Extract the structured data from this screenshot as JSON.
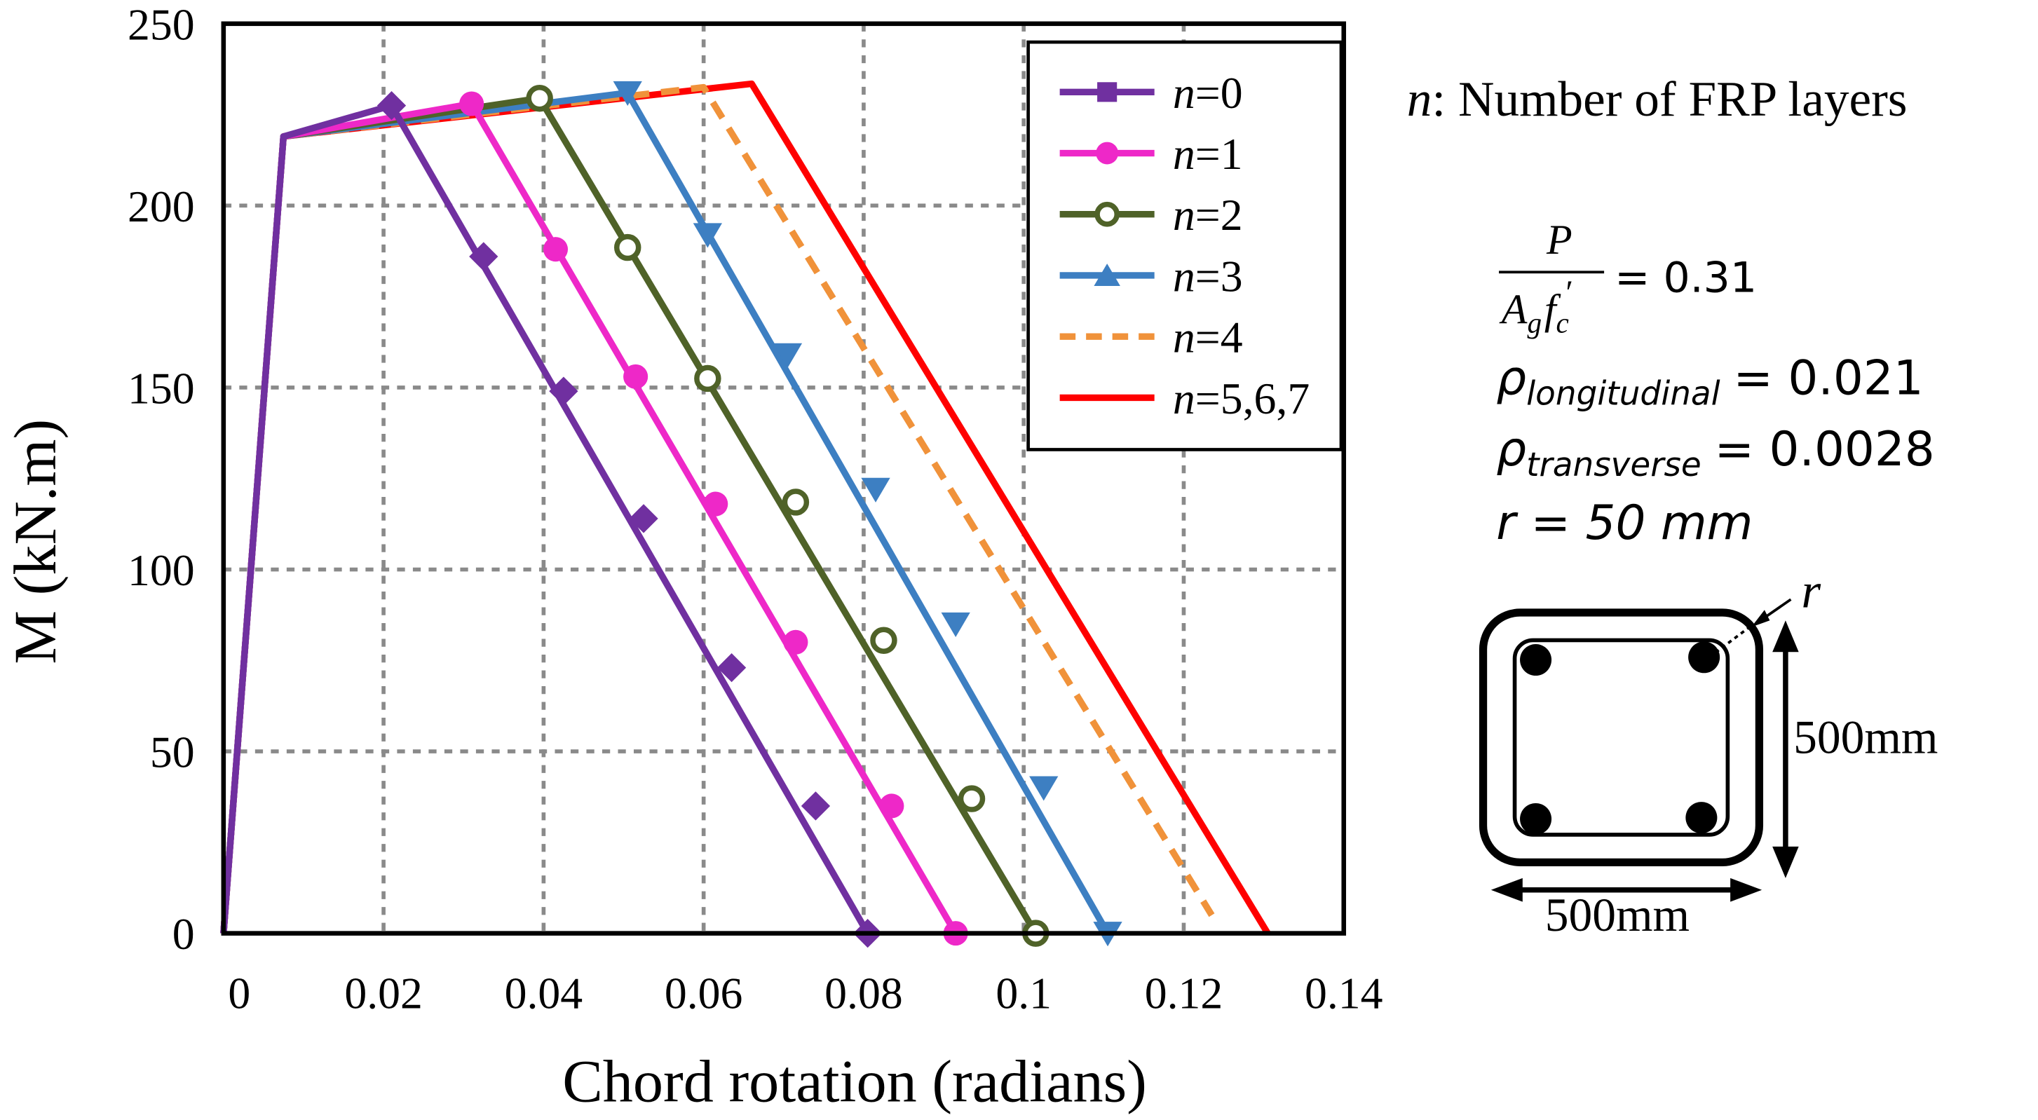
{
  "chart_data": {
    "type": "line",
    "xlabel": "Chord rotation (radians)",
    "ylabel": "M (kN.m)",
    "xlim": [
      0,
      0.14
    ],
    "ylim": [
      0,
      250
    ],
    "xticks": [
      0,
      0.02,
      0.04,
      0.06,
      0.08,
      0.1,
      0.12,
      0.14
    ],
    "xtick_labels": [
      "0",
      "0.02",
      "0.04",
      "0.06",
      "0.08",
      "0.1",
      "0.12",
      "0.14"
    ],
    "yticks": [
      0,
      50,
      100,
      150,
      200,
      250
    ],
    "ytick_labels": [
      "0",
      "50",
      "100",
      "150",
      "200",
      "250"
    ],
    "grid": true,
    "legend_position": "top-right",
    "series": [
      {
        "name": "n=0",
        "italic_part": "n",
        "rest": "=0",
        "color": "#7030a0",
        "line": "solid",
        "marker": "diamond",
        "points": [
          [
            0,
            0
          ],
          [
            0.0075,
            219
          ],
          [
            0.021,
            227.5
          ],
          [
            0.0805,
            0
          ]
        ],
        "markers": [
          [
            0.021,
            227.5
          ],
          [
            0.0325,
            186
          ],
          [
            0.0425,
            149
          ],
          [
            0.0525,
            114
          ],
          [
            0.0635,
            73
          ],
          [
            0.074,
            35
          ],
          [
            0.0805,
            0
          ]
        ]
      },
      {
        "name": "n=1",
        "italic_part": "n",
        "rest": "=1",
        "color": "#ee28c8",
        "line": "solid",
        "marker": "circle",
        "points": [
          [
            0,
            0
          ],
          [
            0.0075,
            219
          ],
          [
            0.031,
            228
          ],
          [
            0.0915,
            0
          ]
        ],
        "markers": [
          [
            0.031,
            228
          ],
          [
            0.0415,
            188
          ],
          [
            0.0515,
            153
          ],
          [
            0.0615,
            118
          ],
          [
            0.0715,
            80
          ],
          [
            0.0835,
            35
          ],
          [
            0.0915,
            0
          ]
        ]
      },
      {
        "name": "n=2",
        "italic_part": "n",
        "rest": "=2",
        "color": "#4f6228",
        "line": "solid",
        "marker": "open-circle",
        "points": [
          [
            0,
            0
          ],
          [
            0.0075,
            219
          ],
          [
            0.0395,
            229.5
          ],
          [
            0.1015,
            0
          ]
        ],
        "markers": [
          [
            0.0395,
            229.5
          ],
          [
            0.0505,
            188.5
          ],
          [
            0.0605,
            152.5
          ],
          [
            0.0715,
            118.5
          ],
          [
            0.0825,
            80.5
          ],
          [
            0.0935,
            37
          ],
          [
            0.1015,
            0
          ]
        ]
      },
      {
        "name": "n=3",
        "italic_part": "n",
        "rest": "=3",
        "color": "#3d7fc2",
        "line": "solid",
        "marker": "triangle",
        "points": [
          [
            0,
            0
          ],
          [
            0.0075,
            219
          ],
          [
            0.0505,
            231
          ],
          [
            0.1105,
            0
          ]
        ],
        "markers": [
          [
            0.0505,
            231
          ],
          [
            0.0605,
            192
          ],
          [
            0.0705,
            159
          ],
          [
            0.0815,
            122
          ],
          [
            0.0915,
            85
          ],
          [
            0.1025,
            40
          ],
          [
            0.1105,
            0
          ]
        ]
      },
      {
        "name": "n=4",
        "italic_part": "n",
        "rest": "=4",
        "color": "#f0923a",
        "line": "dashed",
        "marker": "none",
        "points": [
          [
            0,
            0
          ],
          [
            0.0075,
            219
          ],
          [
            0.06,
            232.5
          ],
          [
            0.1235,
            5
          ]
        ],
        "markers": []
      },
      {
        "name": "n=5,6,7",
        "italic_part": "n",
        "rest": "=5,6,7",
        "color": "#ff0000",
        "line": "solid",
        "marker": "none",
        "points": [
          [
            0,
            0
          ],
          [
            0.0075,
            219
          ],
          [
            0.066,
            233.5
          ],
          [
            0.1305,
            0
          ]
        ],
        "markers": []
      }
    ]
  },
  "annotations": {
    "n_italic": "n",
    "n_desc": ": Number of FRP layers",
    "ratio_numerator": "P",
    "ratio_denominator": "A",
    "ratio_den_sub": "g",
    "ratio_den_f": "f",
    "ratio_den_f_sub": "c",
    "ratio_den_prime": "′",
    "ratio_value": "= 0.31",
    "rho_symbol": "ρ",
    "rho_long_sub": "longitudinal",
    "rho_long_value": "= 0.021",
    "rho_trans_sub": "transverse",
    "rho_trans_value": "= 0.0028",
    "r_line": "r = 50 mm",
    "section_r_label": "r",
    "section_height_label": "500mm",
    "section_width_label": "500mm"
  }
}
